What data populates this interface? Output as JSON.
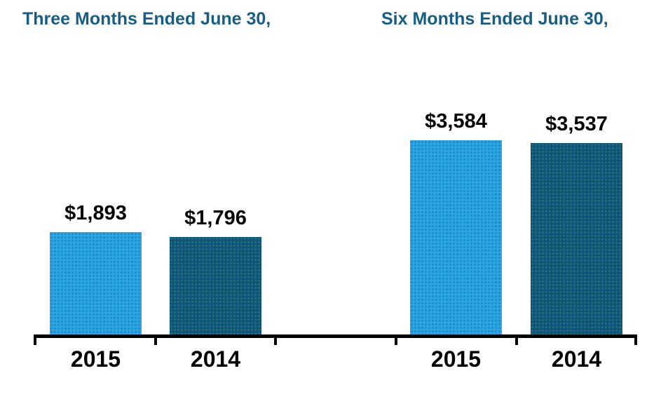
{
  "chart_data": {
    "type": "bar",
    "title": "",
    "ylabel": "",
    "xlabel": "",
    "ylim": [
      0,
      3700
    ],
    "grid": false,
    "legend": "none",
    "groups": [
      {
        "title": "Three Months Ended June 30,",
        "bars": [
          {
            "year": "2015",
            "value": 1893,
            "label": "$1,893",
            "color_key": "light_blue"
          },
          {
            "year": "2014",
            "value": 1796,
            "label": "$1,796",
            "color_key": "dark_blue"
          }
        ]
      },
      {
        "title": "Six Months Ended June 30,",
        "bars": [
          {
            "year": "2015",
            "value": 3584,
            "label": "$3,584",
            "color_key": "light_blue"
          },
          {
            "year": "2014",
            "value": 3537,
            "label": "$3,537",
            "color_key": "dark_blue"
          }
        ]
      }
    ],
    "colors": {
      "light_blue": "#2BA6E2",
      "dark_blue": "#0C567E",
      "header_text": "#175E82",
      "axis": "#000000",
      "value_text": "#000000"
    }
  }
}
